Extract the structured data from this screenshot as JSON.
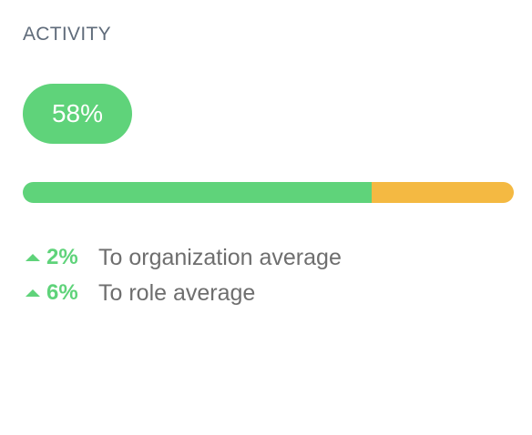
{
  "header": {
    "title": "ACTIVITY"
  },
  "score": {
    "label": "58%"
  },
  "progress": {
    "segments": [
      {
        "value": 71,
        "color": "#5fd37a"
      },
      {
        "value": 29,
        "color": "#f4b942"
      }
    ]
  },
  "comparisons": [
    {
      "delta": "2%",
      "text": "To organization average"
    },
    {
      "delta": "6%",
      "text": "To role average"
    }
  ]
}
